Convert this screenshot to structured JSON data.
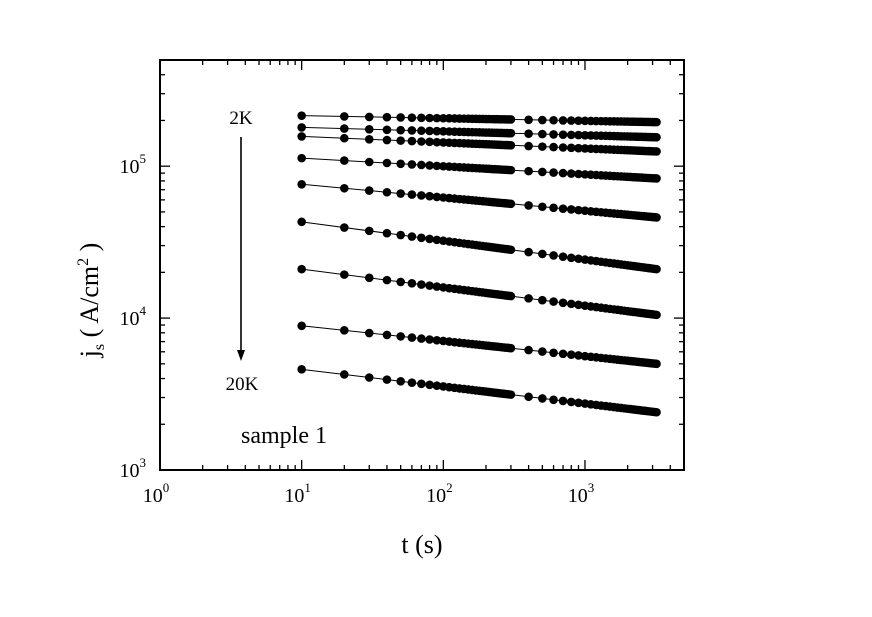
{
  "chart_data": {
    "type": "scatter",
    "title": "",
    "xlabel": "t (s)",
    "ylabel": "j_s ( A/cm^2 )",
    "xscale": "log",
    "yscale": "log",
    "xlim": [
      1,
      5000
    ],
    "ylim": [
      1000,
      500000
    ],
    "grid": false,
    "legend": "none",
    "marker": "filled-circle",
    "line_style": "thin-solid",
    "marker_color": "#000000",
    "x_ticks": [
      {
        "base": "10",
        "exp": "0",
        "value": 1
      },
      {
        "base": "10",
        "exp": "1",
        "value": 10
      },
      {
        "base": "10",
        "exp": "2",
        "value": 100
      },
      {
        "base": "10",
        "exp": "3",
        "value": 1000
      }
    ],
    "y_ticks": [
      {
        "base": "10",
        "exp": "3",
        "value": 1000
      },
      {
        "base": "10",
        "exp": "4",
        "value": 10000
      },
      {
        "base": "10",
        "exp": "5",
        "value": 100000
      }
    ],
    "annotations": {
      "top_label": "2K",
      "bottom_label": "20K",
      "sample_label": "sample 1"
    },
    "series": [
      {
        "values_at_t10": 215000,
        "values_at_t3200": 195000
      },
      {
        "values_at_t10": 180000,
        "values_at_t3200": 155000
      },
      {
        "values_at_t10": 157000,
        "values_at_t3200": 125000
      },
      {
        "values_at_t10": 113000,
        "values_at_t3200": 83000
      },
      {
        "values_at_t10": 76000,
        "values_at_t3200": 46000
      },
      {
        "values_at_t10": 43000,
        "values_at_t3200": 21000
      },
      {
        "values_at_t10": 21000,
        "values_at_t3200": 10500
      },
      {
        "values_at_t10": 8900,
        "values_at_t3200": 5000
      },
      {
        "values_at_t10": 4600,
        "values_at_t3200": 2400
      }
    ],
    "t_points": [
      10,
      20,
      30,
      40,
      50,
      60,
      70,
      80,
      90,
      100,
      110,
      120,
      130,
      140,
      150,
      160,
      170,
      180,
      190,
      200,
      210,
      220,
      230,
      240,
      250,
      260,
      270,
      280,
      290,
      300,
      400,
      500,
      600,
      700,
      800,
      900,
      1000,
      1100,
      1200,
      1300,
      1400,
      1500,
      1600,
      1700,
      1800,
      1900,
      2000,
      2100,
      2200,
      2300,
      2400,
      2500,
      2600,
      2700,
      2800,
      2900,
      3000,
      3100,
      3200
    ]
  }
}
